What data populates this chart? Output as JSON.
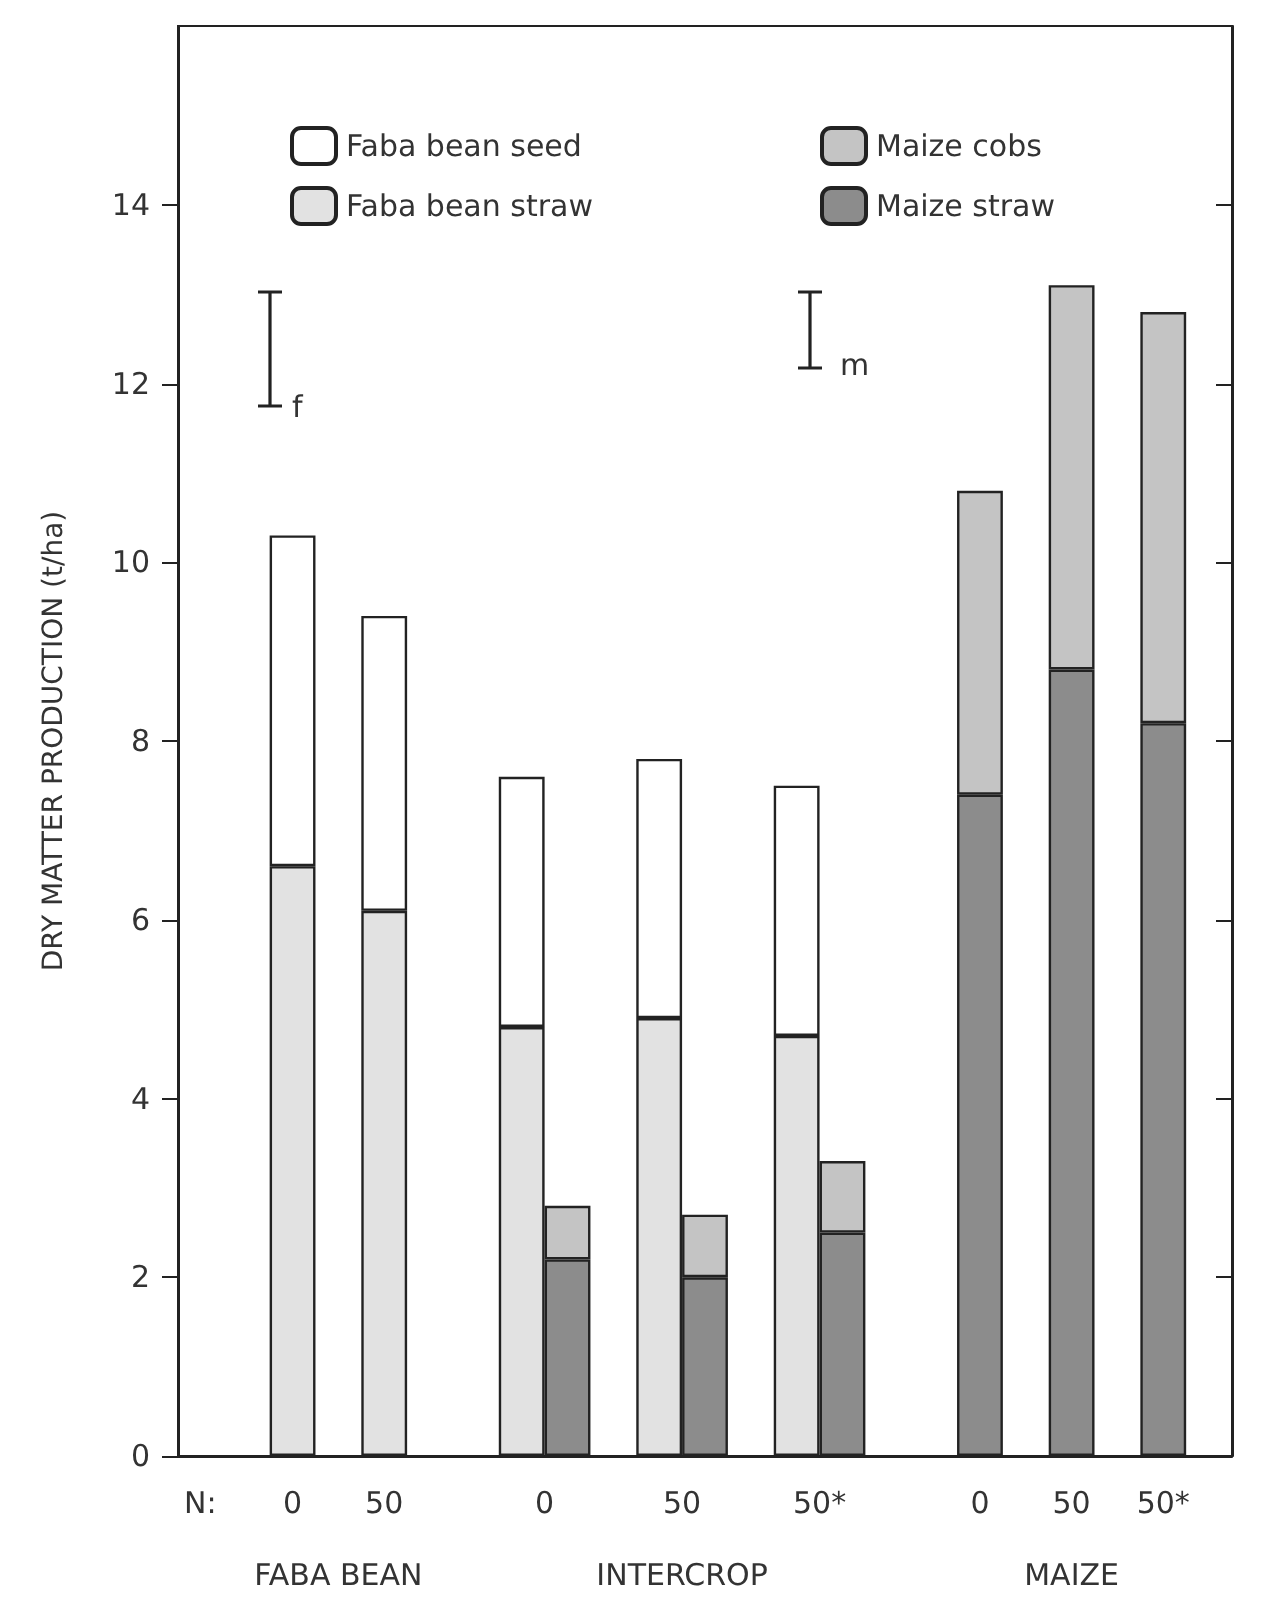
{
  "chart_data": {
    "type": "bar",
    "stacked": true,
    "ylabel": "DRY MATTER PRODUCTION (t/ha)",
    "xlabel": "N:",
    "categories": [
      null,
      null,
      "0",
      null,
      "50",
      null,
      null,
      "0",
      null,
      null,
      "50",
      null,
      null,
      "50*",
      null,
      null,
      null,
      "0",
      null,
      "50",
      null,
      "50*",
      null
    ],
    "series": [
      {
        "name": "Faba bean straw",
        "color": "#e2e2e2",
        "values": [
          null,
          null,
          6.6,
          null,
          6.1,
          null,
          null,
          4.8,
          null,
          null,
          4.9,
          null,
          null,
          4.7,
          null,
          null,
          null,
          null,
          null,
          null,
          null,
          null,
          null
        ]
      },
      {
        "name": "Faba bean seed",
        "color": "#ffffff",
        "values": [
          null,
          null,
          3.7,
          null,
          3.3,
          null,
          null,
          2.8,
          null,
          null,
          2.9,
          null,
          null,
          2.8,
          null,
          null,
          null,
          null,
          null,
          null,
          null,
          null,
          null
        ]
      },
      {
        "name": "Maize straw",
        "color": "#8c8c8c",
        "values": [
          null,
          null,
          null,
          null,
          null,
          null,
          null,
          null,
          2.2,
          null,
          null,
          2.0,
          null,
          null,
          2.5,
          null,
          null,
          7.4,
          null,
          8.8,
          null,
          8.2,
          null
        ]
      },
      {
        "name": "Maize cobs",
        "color": "#c4c4c4",
        "values": [
          null,
          null,
          null,
          null,
          null,
          null,
          null,
          null,
          0.6,
          null,
          null,
          0.7,
          null,
          null,
          0.8,
          null,
          null,
          3.4,
          null,
          4.3,
          null,
          4.6,
          null
        ]
      }
    ],
    "ylim": [
      0,
      16
    ],
    "yticks": [
      0,
      2,
      4,
      6,
      8,
      10,
      12,
      14
    ],
    "grid": false,
    "legend": "top",
    "annotations": [
      "FABA BEAN",
      "INTERCROP",
      "MAIZE",
      "f",
      "m"
    ]
  }
}
